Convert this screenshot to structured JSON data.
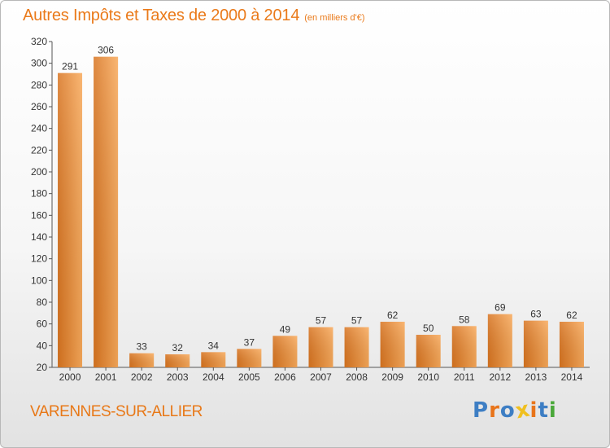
{
  "header": {
    "title": "Autres Impôts et Taxes de 2000 à 2014",
    "unit": "(en milliers d'€)"
  },
  "footer": {
    "commune": "VARENNES-SUR-ALLIER",
    "logo_text": "Proxiti"
  },
  "colors": {
    "title": "#ea7a1a",
    "bar_light": "#f8a95a",
    "bar_dark": "#d87420",
    "logo_letters": [
      "#3d7ec4",
      "#e8741a",
      "#3d7ec4",
      "#f0c020",
      "#e8741a",
      "#3d7ec4",
      "#4aa83a"
    ]
  },
  "chart_data": {
    "type": "bar",
    "categories": [
      "2000",
      "2001",
      "2002",
      "2003",
      "2004",
      "2005",
      "2006",
      "2007",
      "2008",
      "2009",
      "2010",
      "2011",
      "2012",
      "2013",
      "2014"
    ],
    "values": [
      291,
      306,
      33,
      32,
      34,
      37,
      49,
      57,
      57,
      62,
      50,
      58,
      69,
      63,
      62
    ],
    "ylim": [
      20,
      320
    ],
    "yticks": [
      20,
      40,
      60,
      80,
      100,
      120,
      140,
      160,
      180,
      200,
      220,
      240,
      260,
      280,
      300,
      320
    ],
    "grid": false,
    "legend": "none"
  }
}
